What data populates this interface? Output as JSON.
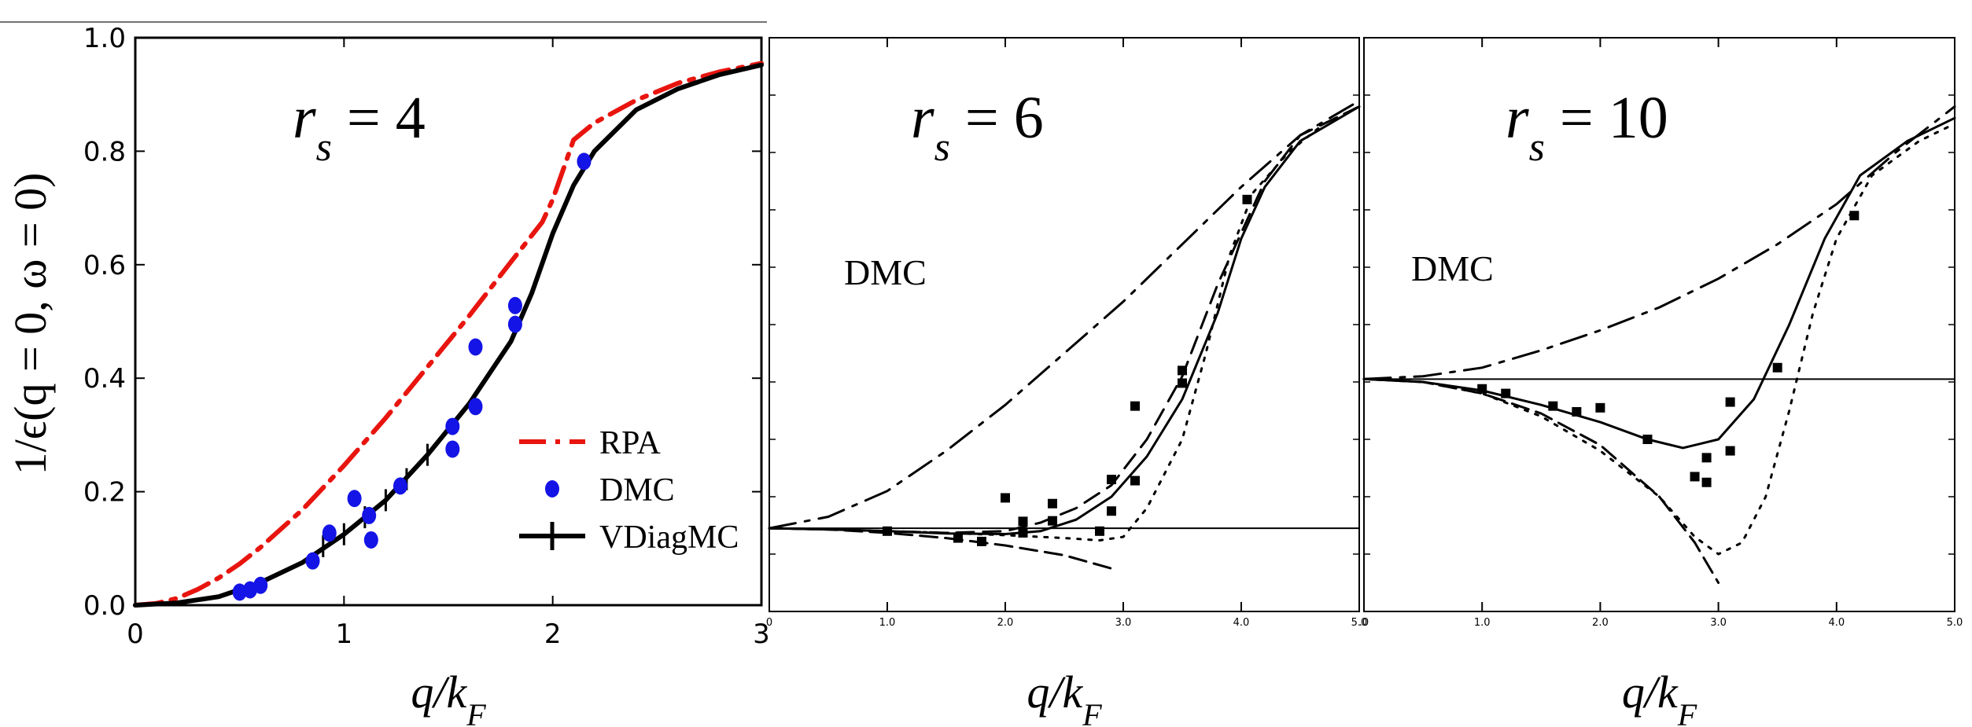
{
  "figure": {
    "ylabel": "1/ϵ(q = 0, ω = 0)",
    "xlabel": "q/k_F"
  },
  "chart_data": [
    {
      "type": "line",
      "panel_label": {
        "base": "r",
        "sub": "s",
        "rest": " = 4"
      },
      "xlabel": "q/k_F",
      "ylabel": "1/ϵ(q = 0, ω = 0)",
      "xlim": [
        0,
        3
      ],
      "ylim": [
        0,
        1.0
      ],
      "xticks": [
        "0",
        "1",
        "2",
        "3"
      ],
      "yticks": [
        "0.0",
        "0.2",
        "0.4",
        "0.6",
        "0.8",
        "1.0"
      ],
      "legend": {
        "position": "lower-right",
        "entries": [
          "RPA",
          "DMC",
          "VDiagMC"
        ]
      },
      "colors": {
        "rpa": "#e8150f",
        "dmc": "#1414e6",
        "vdiagmc": "#000000"
      },
      "series": [
        {
          "name": "RPA",
          "style": "dashdot",
          "x": [
            0,
            0.1,
            0.2,
            0.3,
            0.4,
            0.5,
            0.6,
            0.8,
            1.0,
            1.2,
            1.4,
            1.6,
            1.8,
            1.95,
            2.0,
            2.1,
            2.2,
            2.4,
            2.6,
            2.8,
            3.0
          ],
          "y": [
            0,
            0.003,
            0.012,
            0.028,
            0.048,
            0.073,
            0.102,
            0.168,
            0.246,
            0.33,
            0.42,
            0.51,
            0.605,
            0.675,
            0.715,
            0.82,
            0.85,
            0.89,
            0.92,
            0.94,
            0.955
          ]
        },
        {
          "name": "VDiagMC",
          "style": "solid",
          "x": [
            0,
            0.2,
            0.4,
            0.6,
            0.8,
            1.0,
            1.2,
            1.4,
            1.6,
            1.8,
            1.9,
            2.0,
            2.1,
            2.2,
            2.4,
            2.6,
            2.8,
            3.0
          ],
          "y": [
            0,
            0.004,
            0.015,
            0.04,
            0.075,
            0.125,
            0.185,
            0.265,
            0.355,
            0.465,
            0.55,
            0.655,
            0.74,
            0.8,
            0.873,
            0.91,
            0.935,
            0.952
          ]
        },
        {
          "name": "VDiagMC error bars",
          "style": "errorbar",
          "x": [
            0.9,
            1.0,
            1.1,
            1.2,
            1.3,
            1.4
          ],
          "y": [
            0.104,
            0.125,
            0.155,
            0.185,
            0.222,
            0.265
          ]
        },
        {
          "name": "DMC",
          "style": "markers",
          "x": [
            0.5,
            0.55,
            0.6,
            0.85,
            0.93,
            1.05,
            1.12,
            1.13,
            1.27,
            1.52,
            1.52,
            1.63,
            1.63,
            1.82,
            1.82,
            2.15
          ],
          "y": [
            0.023,
            0.027,
            0.035,
            0.078,
            0.127,
            0.188,
            0.158,
            0.115,
            0.21,
            0.315,
            0.275,
            0.455,
            0.35,
            0.528,
            0.495,
            0.782
          ]
        }
      ]
    },
    {
      "type": "line",
      "panel_label": {
        "base": "r",
        "sub": "s",
        "rest": " = 6"
      },
      "annotation": "DMC",
      "xlabel": "q/k_F",
      "xlim": [
        0,
        5
      ],
      "ylim": [
        0,
        1.0
      ],
      "xticks": [
        "0",
        "1.0",
        "2.0",
        "3.0",
        "4.0",
        "5.0"
      ],
      "reference_line": 0.145,
      "series": [
        {
          "style": "dashdot",
          "x": [
            0,
            0.5,
            1.0,
            1.5,
            2.0,
            2.5,
            3.0,
            3.5,
            4.0,
            4.5,
            5.0
          ],
          "y": [
            0.145,
            0.165,
            0.21,
            0.28,
            0.36,
            0.45,
            0.54,
            0.64,
            0.74,
            0.83,
            0.89
          ]
        },
        {
          "style": "solid",
          "x": [
            0,
            0.5,
            1.0,
            1.5,
            2.0,
            2.3,
            2.6,
            2.9,
            3.2,
            3.5,
            3.8,
            4.0,
            4.2,
            4.5,
            5.0
          ],
          "y": [
            0.145,
            0.143,
            0.14,
            0.136,
            0.135,
            0.14,
            0.16,
            0.2,
            0.27,
            0.37,
            0.52,
            0.65,
            0.74,
            0.82,
            0.88
          ]
        },
        {
          "style": "dashed",
          "x": [
            0,
            0.5,
            1.0,
            1.5,
            2.0,
            2.3,
            2.6,
            2.9,
            3.2,
            3.5,
            3.8,
            4.0,
            4.2,
            4.5,
            5.0
          ],
          "y": [
            0.145,
            0.143,
            0.14,
            0.137,
            0.14,
            0.155,
            0.18,
            0.22,
            0.3,
            0.41,
            0.57,
            0.66,
            0.75,
            0.83,
            0.88
          ]
        },
        {
          "style": "dashed-long",
          "x": [
            0,
            0.5,
            1.0,
            1.5,
            2.0,
            2.5,
            2.9
          ],
          "y": [
            0.145,
            0.143,
            0.137,
            0.128,
            0.115,
            0.098,
            0.075
          ]
        },
        {
          "style": "dotted",
          "x": [
            0,
            0.5,
            1.0,
            1.5,
            2.0,
            2.5,
            2.8,
            3.0,
            3.2,
            3.5,
            3.7,
            3.9,
            4.1,
            4.4,
            4.7,
            5.0
          ],
          "y": [
            0.145,
            0.143,
            0.14,
            0.137,
            0.133,
            0.128,
            0.124,
            0.13,
            0.18,
            0.3,
            0.45,
            0.62,
            0.73,
            0.8,
            0.85,
            0.88
          ]
        },
        {
          "style": "markers",
          "x": [
            1.0,
            1.6,
            1.8,
            2.0,
            2.15,
            2.15,
            2.4,
            2.4,
            2.8,
            2.9,
            2.9,
            3.1,
            3.1,
            3.5,
            3.5,
            4.05
          ],
          "y": [
            0.14,
            0.128,
            0.122,
            0.198,
            0.157,
            0.137,
            0.188,
            0.158,
            0.14,
            0.23,
            0.175,
            0.358,
            0.228,
            0.398,
            0.42,
            0.718
          ]
        }
      ]
    },
    {
      "type": "line",
      "panel_label": {
        "base": "r",
        "sub": "s",
        "rest": " = 10"
      },
      "annotation": "DMC",
      "xlabel": "q/k_F",
      "xlim": [
        0,
        5
      ],
      "ylim": [
        0,
        1.0
      ],
      "xticks": [
        ".0",
        "1.0",
        "2.0",
        "3.0",
        "4.0",
        "5.0"
      ],
      "reference_line": 0.405,
      "series": [
        {
          "style": "dashdot",
          "x": [
            0,
            0.5,
            1.0,
            1.5,
            2.0,
            2.5,
            3.0,
            3.5,
            4.0,
            4.5,
            5.0
          ],
          "y": [
            0.405,
            0.41,
            0.425,
            0.455,
            0.49,
            0.53,
            0.58,
            0.64,
            0.71,
            0.8,
            0.88
          ]
        },
        {
          "style": "solid",
          "x": [
            0,
            0.5,
            1.0,
            1.5,
            2.0,
            2.4,
            2.7,
            3.0,
            3.3,
            3.6,
            3.9,
            4.2,
            4.6,
            5.0
          ],
          "y": [
            0.405,
            0.4,
            0.385,
            0.36,
            0.33,
            0.3,
            0.285,
            0.3,
            0.37,
            0.5,
            0.65,
            0.76,
            0.82,
            0.86
          ]
        },
        {
          "style": "dashed-long",
          "x": [
            0,
            0.5,
            1.0,
            1.5,
            2.0,
            2.5,
            2.8,
            3.0
          ],
          "y": [
            0.405,
            0.4,
            0.38,
            0.345,
            0.29,
            0.2,
            0.12,
            0.05
          ]
        },
        {
          "style": "dotted",
          "x": [
            0,
            0.5,
            1.0,
            1.5,
            2.0,
            2.5,
            2.8,
            3.0,
            3.2,
            3.4,
            3.6,
            3.8,
            4.0,
            4.3,
            4.7,
            5.0
          ],
          "y": [
            0.405,
            0.4,
            0.38,
            0.34,
            0.28,
            0.2,
            0.13,
            0.1,
            0.12,
            0.2,
            0.35,
            0.52,
            0.65,
            0.76,
            0.82,
            0.85
          ]
        },
        {
          "style": "markers",
          "x": [
            1.0,
            1.2,
            1.6,
            1.8,
            2.0,
            2.4,
            2.8,
            2.9,
            2.9,
            3.1,
            3.1,
            3.5,
            4.15
          ],
          "y": [
            0.388,
            0.38,
            0.358,
            0.348,
            0.355,
            0.3,
            0.235,
            0.268,
            0.225,
            0.365,
            0.28,
            0.425,
            0.69
          ]
        }
      ]
    }
  ]
}
